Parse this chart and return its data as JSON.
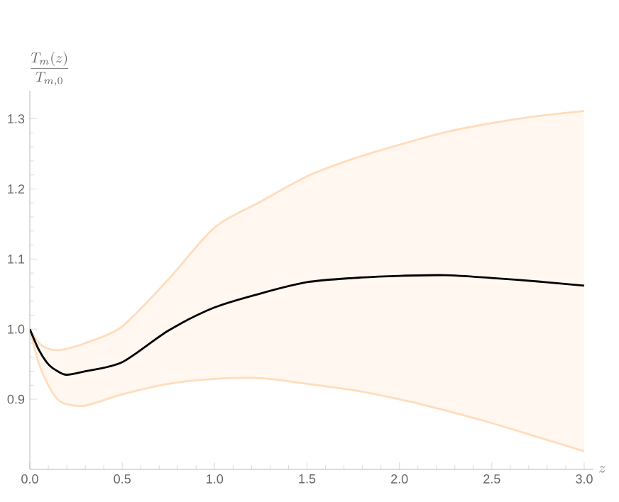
{
  "chart_data": {
    "type": "line",
    "ylabel": "\\frac{T_m(z)}{T_{m,0}}",
    "xlabel": "z",
    "x": [
      0,
      0.05,
      0.1,
      0.15,
      0.2,
      0.3,
      0.5,
      0.75,
      1.0,
      1.25,
      1.5,
      1.75,
      2.0,
      2.25,
      2.5,
      2.75,
      3.0
    ],
    "series": [
      {
        "color": "#ffdcbc",
        "values": [
          1.0,
          0.98,
          0.972,
          0.97,
          0.972,
          0.98,
          1.004,
          1.071,
          1.145,
          1.182,
          1.218,
          1.243,
          1.263,
          1.281,
          1.294,
          1.304,
          1.311
        ]
      },
      {
        "color": "#ffdcbc",
        "values": [
          1.0,
          0.95,
          0.92,
          0.9,
          0.893,
          0.891,
          0.907,
          0.922,
          0.929,
          0.93,
          0.922,
          0.913,
          0.9,
          0.884,
          0.866,
          0.846,
          0.826
        ]
      },
      {
        "color": "#000000",
        "values": [
          1.0,
          0.97,
          0.95,
          0.94,
          0.935,
          0.94,
          0.953,
          0.998,
          1.031,
          1.051,
          1.067,
          1.073,
          1.076,
          1.077,
          1.073,
          1.068,
          1.062
        ],
        "upper": [
          1.0,
          0.98,
          0.972,
          0.97,
          0.972,
          0.98,
          1.004,
          1.071,
          1.145,
          1.182,
          1.218,
          1.243,
          1.263,
          1.281,
          1.294,
          1.304,
          1.311
        ],
        "lower": [
          1.0,
          0.95,
          0.92,
          0.9,
          0.893,
          0.891,
          0.907,
          0.922,
          0.929,
          0.93,
          0.922,
          0.913,
          0.9,
          0.884,
          0.866,
          0.846,
          0.826
        ]
      }
    ],
    "xlim": [
      0,
      3.05
    ],
    "ylim": [
      0.8,
      1.34
    ],
    "xticks": [
      {
        "value": 0,
        "label": "0.0"
      },
      0.5,
      {
        "value": 1,
        "label": "1.0"
      },
      1.5,
      {
        "value": 2,
        "label": "2.0"
      },
      2.5,
      {
        "value": 3,
        "label": "3.0"
      }
    ],
    "yticks": [
      0.9,
      {
        "value": 1.0,
        "label": "1.0"
      },
      1.1,
      1.2,
      1.3
    ],
    "grid": false,
    "marker": "none",
    "line_style": "solid"
  }
}
